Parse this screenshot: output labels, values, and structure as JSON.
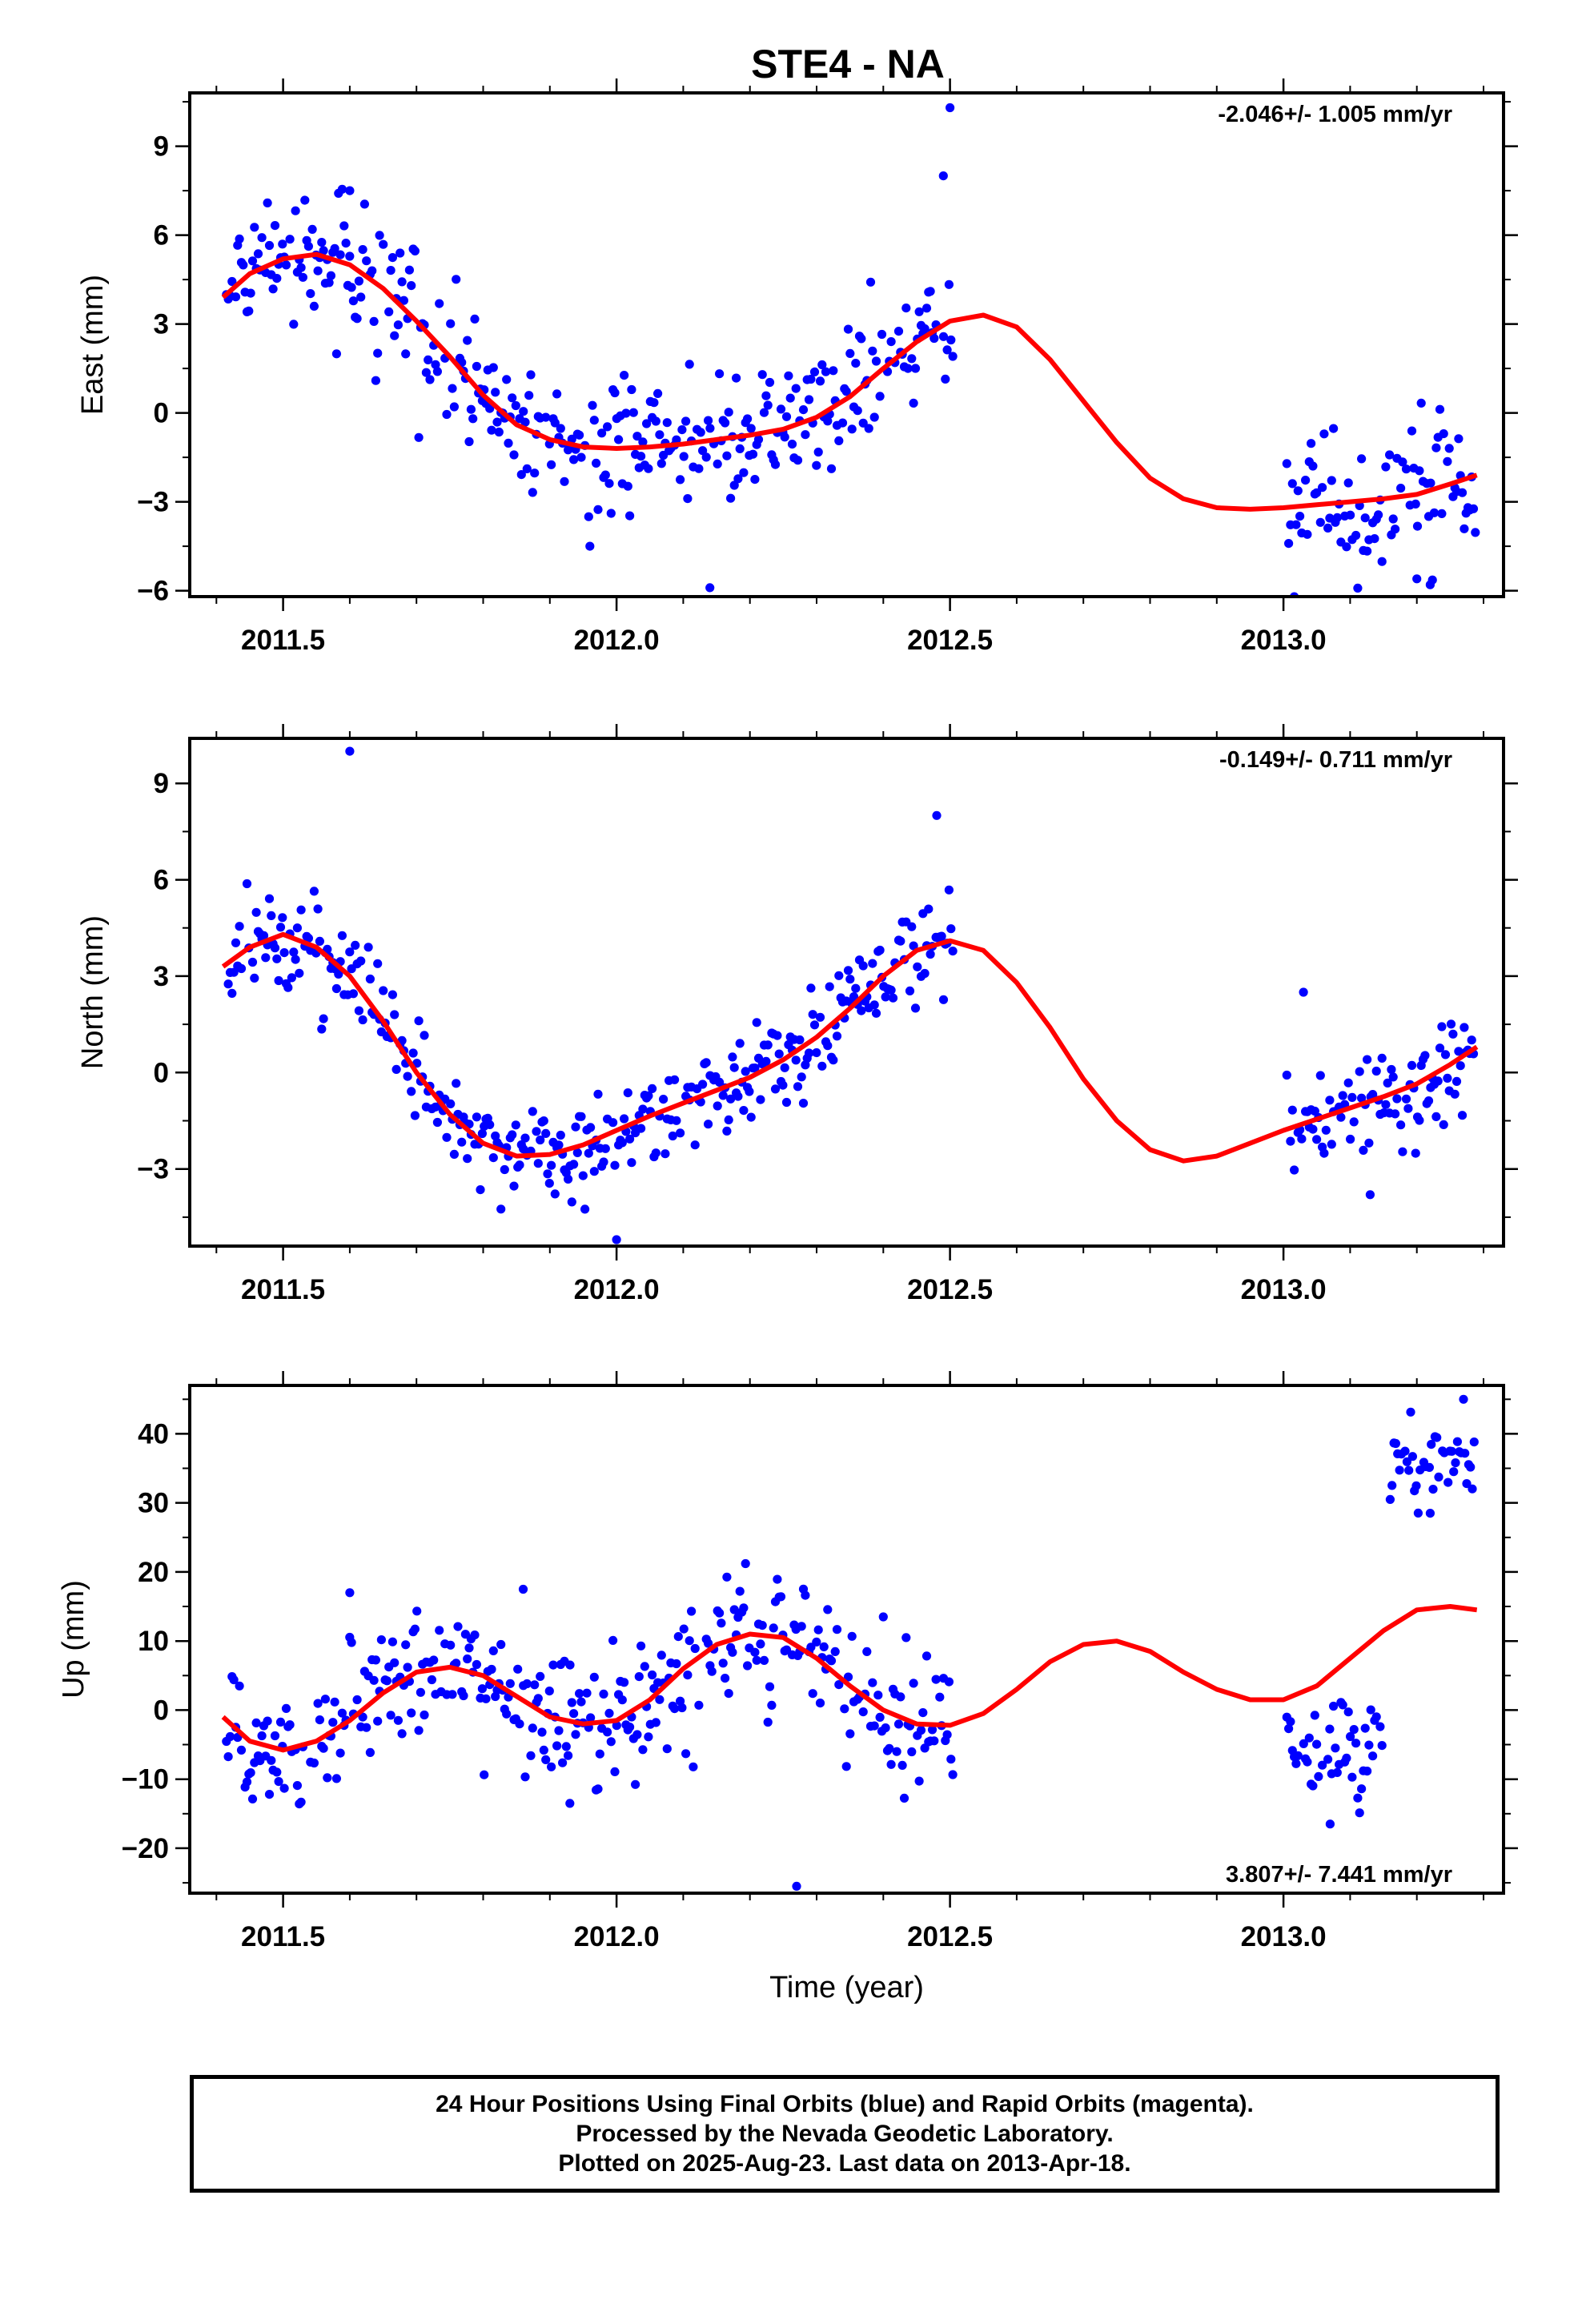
{
  "title": "STE4 - NA",
  "footer": {
    "line1": "24 Hour Positions Using Final Orbits (blue) and Rapid Orbits (magenta).",
    "line2": "Processed by the Nevada Geodetic Laboratory.",
    "line3": "Plotted on 2025-Aug-23. Last data on 2013-Apr-18."
  },
  "colors": {
    "final_orbits": "#0000ff",
    "model_fit": "#ff0000",
    "axes": "#000000"
  },
  "chart_data": [
    {
      "type": "scatter",
      "panel": "east",
      "ylabel": "East (mm)",
      "xlabel": "",
      "rate_annotation": "-2.046+/- 1.005 mm/yr",
      "rate_position": "top-right",
      "xlim": [
        2011.36,
        2013.33
      ],
      "ylim": [
        -6.2,
        10.8
      ],
      "xticks": [
        2011.5,
        2012.0,
        2012.5,
        2013.0
      ],
      "xtick_labels": [
        "2011.5",
        "2012.0",
        "2012.5",
        "2013.0"
      ],
      "yticks": [
        -6,
        -3,
        0,
        3,
        6,
        9
      ],
      "ytick_labels": [
        "−6",
        "−3",
        "0",
        "3",
        "6",
        "9"
      ],
      "grid": false,
      "series": [
        {
          "kind": "points",
          "x_start": 2011.415,
          "x_end": 2012.505,
          "x_step": 0.0028,
          "gap_x_start": 2013.005,
          "gap_x_end": 2013.29,
          "scatter_sd": 1.1,
          "outliers": [
            [
              2012.5,
              10.3
            ],
            [
              2012.14,
              -5.9
            ],
            [
              2011.96,
              -4.5
            ],
            [
              2013.22,
              -5.8
            ],
            [
              2013.2,
              -5.6
            ],
            [
              2012.49,
              8.0
            ],
            [
              2011.6,
              7.5
            ]
          ]
        },
        {
          "kind": "line",
          "x": [
            2011.41,
            2011.45,
            2011.5,
            2011.55,
            2011.6,
            2011.65,
            2011.7,
            2011.75,
            2011.8,
            2011.85,
            2011.9,
            2011.95,
            2012.0,
            2012.05,
            2012.1,
            2012.15,
            2012.2,
            2012.25,
            2012.3,
            2012.35,
            2012.4,
            2012.45,
            2012.5,
            2012.55,
            2012.6,
            2012.65,
            2012.7,
            2012.75,
            2012.8,
            2012.85,
            2012.9,
            2012.95,
            2013.0,
            2013.05,
            2013.1,
            2013.15,
            2013.2,
            2013.25,
            2013.29
          ],
          "y": [
            3.9,
            4.7,
            5.2,
            5.35,
            5.0,
            4.2,
            3.1,
            1.9,
            0.6,
            -0.4,
            -0.9,
            -1.15,
            -1.2,
            -1.15,
            -1.05,
            -0.9,
            -0.75,
            -0.55,
            -0.15,
            0.55,
            1.5,
            2.4,
            3.1,
            3.3,
            2.9,
            1.8,
            0.4,
            -1.0,
            -2.2,
            -2.9,
            -3.2,
            -3.25,
            -3.2,
            -3.1,
            -3.0,
            -2.9,
            -2.75,
            -2.4,
            -2.1
          ]
        }
      ]
    },
    {
      "type": "scatter",
      "panel": "north",
      "ylabel": "North (mm)",
      "xlabel": "",
      "rate_annotation": "-0.149+/- 0.711 mm/yr",
      "rate_position": "top-right",
      "xlim": [
        2011.36,
        2013.33
      ],
      "ylim": [
        -5.4,
        10.4
      ],
      "xticks": [
        2011.5,
        2012.0,
        2012.5,
        2013.0
      ],
      "xtick_labels": [
        "2011.5",
        "2012.0",
        "2012.5",
        "2013.0"
      ],
      "yticks": [
        -3,
        0,
        3,
        6,
        9
      ],
      "ytick_labels": [
        "−3",
        "0",
        "3",
        "6",
        "9"
      ],
      "grid": false,
      "series": [
        {
          "kind": "points",
          "x_start": 2011.415,
          "x_end": 2012.505,
          "x_step": 0.0028,
          "gap_x_start": 2013.005,
          "gap_x_end": 2013.29,
          "scatter_sd": 0.8,
          "outliers": [
            [
              2011.6,
              10.0
            ],
            [
              2012.48,
              8.0
            ],
            [
              2012.0,
              -5.2
            ],
            [
              2013.13,
              -3.8
            ],
            [
              2013.03,
              2.5
            ]
          ]
        },
        {
          "kind": "line",
          "x": [
            2011.41,
            2011.45,
            2011.5,
            2011.55,
            2011.6,
            2011.65,
            2011.7,
            2011.75,
            2011.8,
            2011.85,
            2011.9,
            2011.95,
            2012.0,
            2012.05,
            2012.1,
            2012.15,
            2012.2,
            2012.25,
            2012.3,
            2012.35,
            2012.4,
            2012.45,
            2012.5,
            2012.55,
            2012.6,
            2012.65,
            2012.7,
            2012.75,
            2012.8,
            2012.85,
            2012.9,
            2012.95,
            2013.0,
            2013.05,
            2013.1,
            2013.15,
            2013.2,
            2013.25,
            2013.29
          ],
          "y": [
            3.3,
            3.9,
            4.3,
            3.9,
            3.0,
            1.6,
            0.0,
            -1.3,
            -2.2,
            -2.6,
            -2.55,
            -2.25,
            -1.8,
            -1.35,
            -0.95,
            -0.55,
            -0.15,
            0.4,
            1.1,
            2.0,
            3.0,
            3.8,
            4.1,
            3.8,
            2.8,
            1.4,
            -0.2,
            -1.5,
            -2.4,
            -2.75,
            -2.6,
            -2.2,
            -1.8,
            -1.45,
            -1.1,
            -0.75,
            -0.35,
            0.25,
            0.8
          ]
        }
      ]
    },
    {
      "type": "scatter",
      "panel": "up",
      "ylabel": "Up (mm)",
      "xlabel": "Time (year)",
      "rate_annotation": "3.807+/- 7.441 mm/yr",
      "rate_position": "bottom-right",
      "xlim": [
        2011.36,
        2013.33
      ],
      "ylim": [
        -26.5,
        47
      ],
      "xticks": [
        2011.5,
        2012.0,
        2012.5,
        2013.0
      ],
      "xtick_labels": [
        "2011.5",
        "2012.0",
        "2012.5",
        "2013.0"
      ],
      "yticks": [
        -20,
        -10,
        0,
        10,
        20,
        30,
        40
      ],
      "ytick_labels": [
        "−20",
        "−10",
        "0",
        "10",
        "20",
        "30",
        "40"
      ],
      "grid": false,
      "series": [
        {
          "kind": "points",
          "x_start": 2011.415,
          "x_end": 2012.505,
          "x_step": 0.0028,
          "gap_x_start": 2013.005,
          "gap_x_end": 2013.15,
          "late_cluster_x": [
            2013.16,
            2013.29
          ],
          "late_cluster_center": 36,
          "scatter_sd": 5.0,
          "outliers": [
            [
              2012.27,
              -25.5
            ],
            [
              2011.6,
              17
            ],
            [
              2011.86,
              17.5
            ],
            [
              2012.4,
              13.5
            ],
            [
              2013.27,
              45
            ],
            [
              2013.22,
              28.5
            ],
            [
              2013.07,
              -16.5
            ],
            [
              2011.93,
              -13.5
            ]
          ]
        },
        {
          "kind": "line",
          "x": [
            2011.41,
            2011.45,
            2011.5,
            2011.55,
            2011.6,
            2011.65,
            2011.7,
            2011.75,
            2011.8,
            2011.85,
            2011.9,
            2011.95,
            2012.0,
            2012.05,
            2012.1,
            2012.15,
            2012.2,
            2012.25,
            2012.3,
            2012.35,
            2012.4,
            2012.45,
            2012.5,
            2012.55,
            2012.6,
            2012.65,
            2012.7,
            2012.75,
            2012.8,
            2012.85,
            2012.9,
            2012.95,
            2013.0,
            2013.05,
            2013.1,
            2013.15,
            2013.2,
            2013.25,
            2013.29
          ],
          "y": [
            -1.0,
            -4.5,
            -5.8,
            -4.5,
            -1.5,
            2.5,
            5.5,
            6.2,
            5.0,
            2.0,
            -1.0,
            -2.0,
            -1.5,
            1.5,
            6.0,
            9.5,
            11.0,
            10.5,
            7.5,
            3.5,
            0.0,
            -2.0,
            -2.2,
            -0.5,
            3.0,
            7.0,
            9.5,
            10.0,
            8.5,
            5.5,
            3.0,
            1.5,
            1.5,
            3.5,
            7.5,
            11.5,
            14.5,
            15.0,
            14.5
          ]
        }
      ]
    }
  ]
}
